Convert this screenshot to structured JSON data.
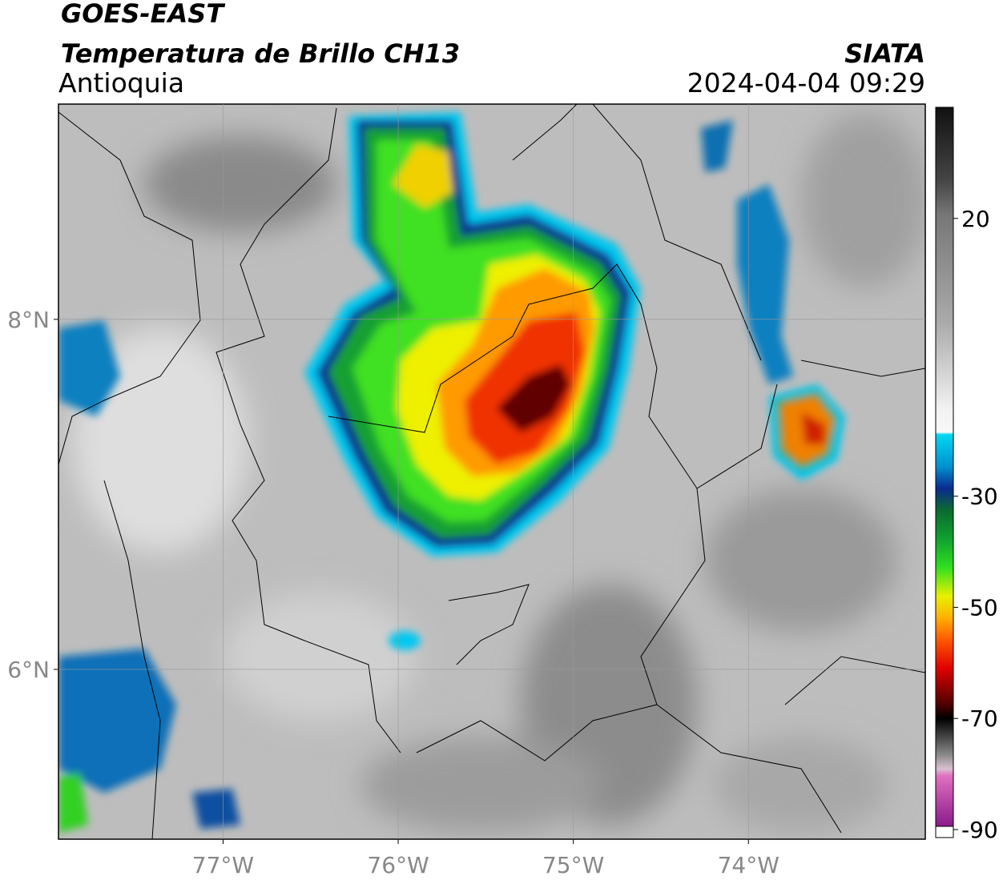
{
  "title": "GOES-EAST",
  "subtitle": "Temperatura de Brillo CH13",
  "region": "Antioquia",
  "source": "SIATA",
  "datetime": "2024-04-04 09:29",
  "map": {
    "xlim": [
      -77.94,
      -72.99
    ],
    "ylim": [
      5.03,
      9.23
    ],
    "xticks": [
      {
        "value": -77,
        "label": "77°W"
      },
      {
        "value": -76,
        "label": "76°W"
      },
      {
        "value": -75,
        "label": "75°W"
      },
      {
        "value": -74,
        "label": "74°W"
      }
    ],
    "yticks": [
      {
        "value": 6,
        "label": "6°N"
      },
      {
        "value": 8,
        "label": "8°N"
      }
    ],
    "grid": true
  },
  "colorbar": {
    "lim": [
      -90,
      40
    ],
    "ticks": [
      20,
      -30,
      -50,
      -70,
      -90
    ]
  }
}
